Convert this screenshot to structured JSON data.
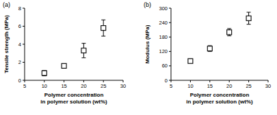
{
  "chart_data": [
    {
      "type": "scatter",
      "title": "(a)",
      "x_label": "Polymer concentration\nin polymer solution (wt%)",
      "y_label": "Tensile strength (MPa)",
      "x": [
        10,
        15,
        20,
        25
      ],
      "values": [
        0.8,
        1.6,
        3.3,
        5.8
      ],
      "error": [
        0.3,
        0.25,
        0.8,
        0.9
      ],
      "xlim": [
        5,
        30
      ],
      "xticks": [
        5,
        10,
        15,
        20,
        25,
        30
      ],
      "ylim": [
        0,
        8
      ],
      "yticks": [
        0,
        2,
        4,
        6,
        8
      ],
      "marker": "square",
      "color": "#000000",
      "grid": false
    },
    {
      "type": "scatter",
      "title": "(b)",
      "x_label": "Polymer concentration\nin polymer solution (wt%)",
      "y_label": "Modulus (MPa)",
      "x": [
        10,
        15,
        20,
        25
      ],
      "values": [
        80,
        132,
        200,
        258
      ],
      "error": [
        8,
        12,
        15,
        25
      ],
      "xlim": [
        5,
        30
      ],
      "xticks": [
        5,
        10,
        15,
        20,
        25,
        30
      ],
      "ylim": [
        0,
        300
      ],
      "yticks": [
        0,
        60,
        120,
        180,
        240,
        300
      ],
      "marker": "square",
      "color": "#000000",
      "grid": false
    }
  ]
}
